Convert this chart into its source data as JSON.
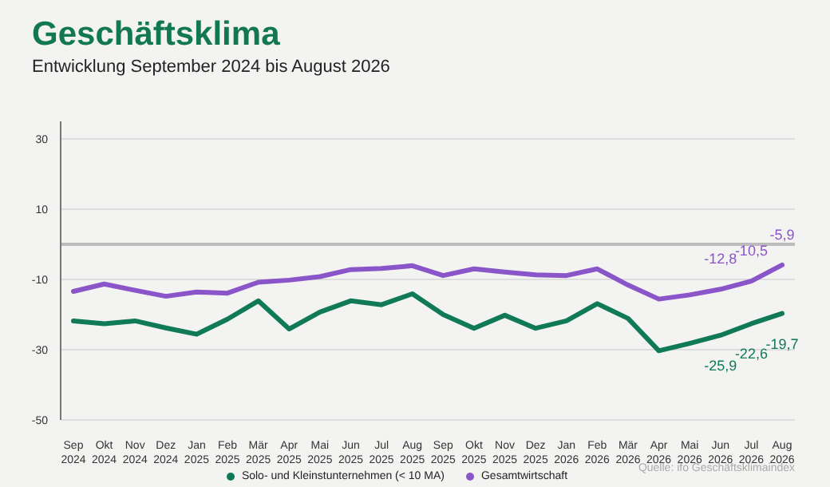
{
  "chart_data": {
    "type": "line",
    "title": "Geschäftsklima",
    "subtitle": "Entwicklung September 2024 bis August 2026",
    "categories": [
      "Sep 2024",
      "Okt 2024",
      "Nov 2024",
      "Dez 2024",
      "Jan 2025",
      "Feb 2025",
      "Mär 2025",
      "Apr 2025",
      "Mai 2025",
      "Jun 2025",
      "Jul 2025",
      "Aug 2025",
      "Sep 2025",
      "Okt 2025",
      "Nov 2025",
      "Dez 2025",
      "Jan 2026",
      "Feb 2026",
      "Mär 2026",
      "Apr 2026",
      "Mai 2026",
      "Jun 2026",
      "Jul 2026",
      "Aug 2026"
    ],
    "series": [
      {
        "name": "Solo- und Kleinstunternehmen (< 10 MA)",
        "color": "#0f7a55",
        "values": [
          -21.8,
          -22.6,
          -21.8,
          -23.8,
          -25.6,
          -21.3,
          -16.1,
          -24.1,
          -19.3,
          -16.1,
          -17.2,
          -14.1,
          -20.0,
          -23.9,
          -20.2,
          -23.9,
          -21.8,
          -16.9,
          -21.1,
          -30.3,
          -28.2,
          -25.9,
          -22.6,
          -19.7
        ],
        "value_labels": [
          null,
          null,
          null,
          null,
          null,
          null,
          null,
          null,
          null,
          null,
          null,
          null,
          null,
          null,
          null,
          null,
          null,
          null,
          null,
          null,
          null,
          "-25,9",
          "-22,6",
          "-19,7"
        ]
      },
      {
        "name": "Gesamtwirtschaft",
        "color": "#8a55c9",
        "values": [
          -13.4,
          -11.3,
          -13.1,
          -14.8,
          -13.6,
          -13.9,
          -10.8,
          -10.2,
          -9.2,
          -7.2,
          -6.9,
          -6.1,
          -8.9,
          -7.0,
          -7.9,
          -8.7,
          -8.9,
          -7.0,
          -11.6,
          -15.6,
          -14.4,
          -12.8,
          -10.5,
          -5.9
        ],
        "value_labels": [
          null,
          null,
          null,
          null,
          null,
          null,
          null,
          null,
          null,
          null,
          null,
          null,
          null,
          null,
          null,
          null,
          null,
          null,
          null,
          null,
          null,
          "-12,8",
          "-10,5",
          "-5,9"
        ]
      }
    ],
    "ylim": [
      -50,
      35
    ],
    "yticks": [
      -50,
      -30,
      -10,
      10,
      30
    ],
    "grid": "y",
    "legend": "bottom",
    "marker": "none",
    "line_style": "solid",
    "ref_lines": [
      {
        "axis": "y",
        "value": 0,
        "color": "#bbbbbb"
      }
    ],
    "annotations": [
      "Quelle: ifo Geschäftsklimaindex"
    ]
  }
}
